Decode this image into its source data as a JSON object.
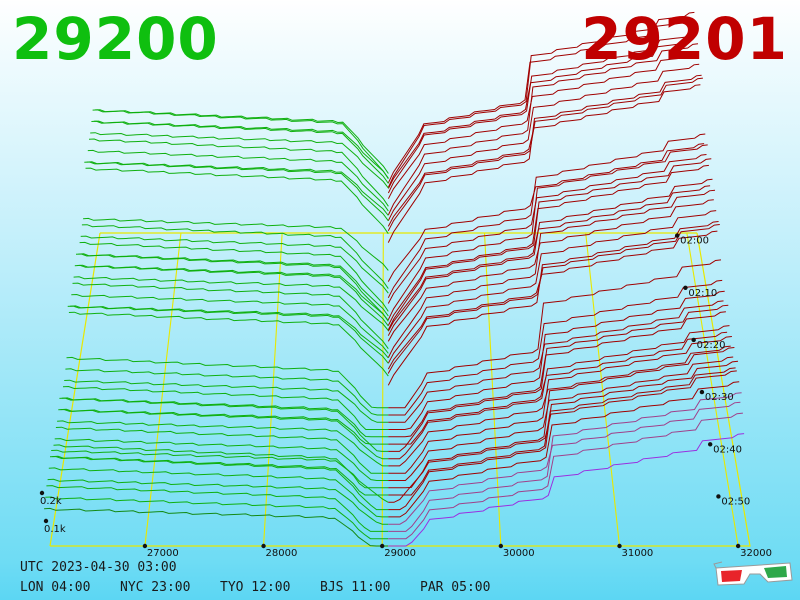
{
  "header": {
    "bid_price": "29200",
    "ask_price": "29201",
    "bid_color": "#00bf00",
    "ask_color": "#c00000"
  },
  "footer": {
    "utc": "UTC 2023-04-30 03:00",
    "cities": [
      {
        "label": "LON 04:00"
      },
      {
        "label": "NYC 23:00"
      },
      {
        "label": "TYO 12:00"
      },
      {
        "label": "BJS 11:00"
      },
      {
        "label": "PAR 05:00"
      }
    ],
    "icon": "3d-glasses-icon"
  },
  "chart_data": {
    "type": "area",
    "style": "3d-depth-chart-time-series",
    "x_axis": {
      "ticks": [
        27000,
        28000,
        29000,
        30000,
        31000,
        32000
      ]
    },
    "y_axis": {
      "ticks": [
        "0.1k",
        "0.2k"
      ]
    },
    "time_axis": {
      "ticks": [
        "02:00",
        "02:10",
        "02:20",
        "02:30",
        "02:40",
        "02:50"
      ]
    },
    "bid_series_color": "#00b000",
    "ask_series_color": "#a00000",
    "latest_series_color": "#a040ff",
    "grid": true
  }
}
